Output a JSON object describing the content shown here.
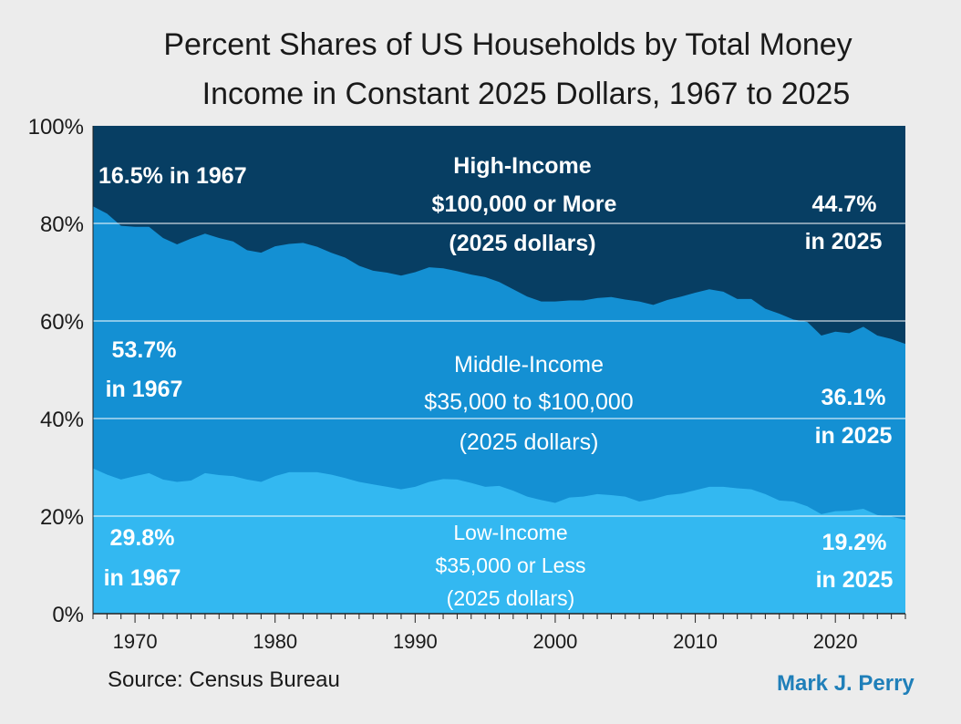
{
  "chart_data": {
    "type": "area",
    "title_line1": "Percent Shares of US Households by Total Money",
    "title_line2": "Income in Constant 2025 Dollars, 1967 to 2025",
    "ylim": [
      0,
      100
    ],
    "xlim": [
      1967,
      2025
    ],
    "y_ticks": [
      "0%",
      "20%",
      "40%",
      "60%",
      "80%",
      "100%"
    ],
    "x_ticks": [
      "1970",
      "1980",
      "1990",
      "2000",
      "2010",
      "2020"
    ],
    "grid": true,
    "colors": {
      "low": "#33b8f1",
      "middle": "#1490d3",
      "high": "#073e63",
      "gridline": "#ffffff"
    },
    "x": [
      1967,
      1968,
      1969,
      1970,
      1971,
      1972,
      1973,
      1974,
      1975,
      1976,
      1977,
      1978,
      1979,
      1980,
      1981,
      1982,
      1983,
      1984,
      1985,
      1986,
      1987,
      1988,
      1989,
      1990,
      1991,
      1992,
      1993,
      1994,
      1995,
      1996,
      1997,
      1998,
      1999,
      2000,
      2001,
      2002,
      2003,
      2004,
      2005,
      2006,
      2007,
      2008,
      2009,
      2010,
      2011,
      2012,
      2013,
      2014,
      2015,
      2016,
      2017,
      2018,
      2019,
      2020,
      2021,
      2022,
      2023,
      2024,
      2025
    ],
    "low_upper": [
      29.8,
      28.5,
      27.5,
      28.2,
      28.8,
      27.5,
      27.0,
      27.3,
      28.8,
      28.4,
      28.2,
      27.5,
      27.0,
      28.2,
      29.0,
      29.0,
      29.0,
      28.5,
      27.8,
      27.0,
      26.5,
      26.0,
      25.5,
      26.0,
      27.0,
      27.6,
      27.5,
      26.8,
      26.0,
      26.2,
      25.2,
      24.0,
      23.3,
      22.7,
      23.8,
      24.0,
      24.5,
      24.3,
      24.0,
      23.0,
      23.5,
      24.3,
      24.6,
      25.3,
      26.0,
      26.0,
      25.7,
      25.5,
      24.5,
      23.2,
      23.0,
      22.0,
      20.4,
      21.0,
      21.1,
      21.5,
      20.2,
      19.9,
      19.2
    ],
    "middle_upper": [
      83.5,
      82.0,
      79.5,
      79.3,
      79.3,
      77.0,
      75.7,
      76.9,
      77.9,
      77.0,
      76.3,
      74.5,
      74.0,
      75.3,
      75.8,
      76.0,
      75.2,
      74.0,
      73.0,
      71.3,
      70.3,
      69.9,
      69.3,
      70.0,
      71.0,
      70.8,
      70.2,
      69.5,
      69.0,
      68.0,
      66.5,
      65.0,
      64.0,
      64.0,
      64.2,
      64.2,
      64.7,
      64.9,
      64.4,
      64.0,
      63.3,
      64.3,
      65.0,
      65.8,
      66.5,
      66.0,
      64.5,
      64.5,
      62.5,
      61.5,
      60.3,
      59.8,
      57.0,
      57.8,
      57.5,
      58.8,
      57.0,
      56.3,
      55.3
    ],
    "labels": {
      "high_name": "High-Income",
      "high_range": "$100,000 or More",
      "high_note": "(2025 dollars)",
      "high_start_line": "16.5% in 1967",
      "high_end_value": "44.7%",
      "high_end_year": "in 2025",
      "mid_name": "Middle-Income",
      "mid_range": "$35,000 to $100,000",
      "mid_note": "(2025 dollars)",
      "mid_start_value": "53.7%",
      "mid_start_year": "in 1967",
      "mid_end_value": "36.1%",
      "mid_end_year": "in 2025",
      "low_name": "Low-Income",
      "low_range": "$35,000 or Less",
      "low_note": "(2025 dollars)",
      "low_start_value": "29.8%",
      "low_start_year": "in 1967",
      "low_end_value": "19.2%",
      "low_end_year": "in 2025"
    }
  },
  "footer": {
    "source": "Source: Census Bureau",
    "author": "Mark J. Perry"
  }
}
